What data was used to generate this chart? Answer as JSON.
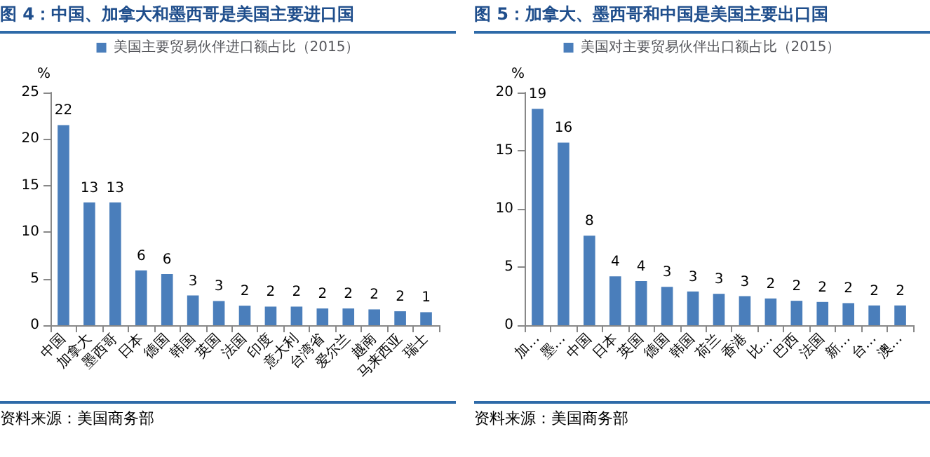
{
  "chart_data": [
    {
      "type": "bar",
      "title": "图 4：中国、加拿大和墨西哥是美国主要进口国",
      "ylabel": "%",
      "legend": "top",
      "annotations": [
        "资料来源：美国商务部"
      ],
      "categories": [
        "中国",
        "加拿大",
        "墨西哥",
        "日本",
        "德国",
        "韩国",
        "英国",
        "法国",
        "印度",
        "意大利",
        "台湾省",
        "爱尔兰",
        "越南",
        "马来西亚",
        "瑞士"
      ],
      "series": [
        {
          "name": "美国主要贸易伙伴进口额占比（2015）",
          "color": "#4a7ebb",
          "values": [
            21.5,
            13.2,
            13.2,
            5.9,
            5.5,
            3.2,
            2.6,
            2.1,
            2.0,
            2.0,
            1.8,
            1.8,
            1.7,
            1.5,
            1.4
          ],
          "value_labels": [
            "22",
            "13",
            "13",
            "6",
            "6",
            "3",
            "3",
            "2",
            "2",
            "2",
            "2",
            "2",
            "2",
            "2",
            "1"
          ]
        }
      ],
      "ylim": [
        0,
        25
      ],
      "yticks": [
        0,
        5,
        10,
        15,
        20,
        25
      ]
    },
    {
      "type": "bar",
      "title": "图 5：加拿大、墨西哥和中国是美国主要出口国",
      "ylabel": "%",
      "legend": "top",
      "annotations": [
        "资料来源：美国商务部"
      ],
      "categories": [
        "加…",
        "墨…",
        "中国",
        "日本",
        "英国",
        "德国",
        "韩国",
        "荷兰",
        "香港",
        "比…",
        "巴西",
        "法国",
        "新…",
        "台…",
        "澳…"
      ],
      "series": [
        {
          "name": "美国对主要贸易伙伴出口额占比（2015）",
          "color": "#4a7ebb",
          "values": [
            18.6,
            15.7,
            7.7,
            4.2,
            3.8,
            3.3,
            2.9,
            2.7,
            2.5,
            2.3,
            2.1,
            2.0,
            1.9,
            1.7,
            1.7
          ],
          "value_labels": [
            "19",
            "16",
            "8",
            "4",
            "4",
            "3",
            "3",
            "3",
            "3",
            "2",
            "2",
            "2",
            "2",
            "2",
            "2"
          ]
        }
      ],
      "ylim": [
        0,
        20
      ],
      "yticks": [
        0,
        5,
        10,
        15,
        20
      ]
    }
  ]
}
